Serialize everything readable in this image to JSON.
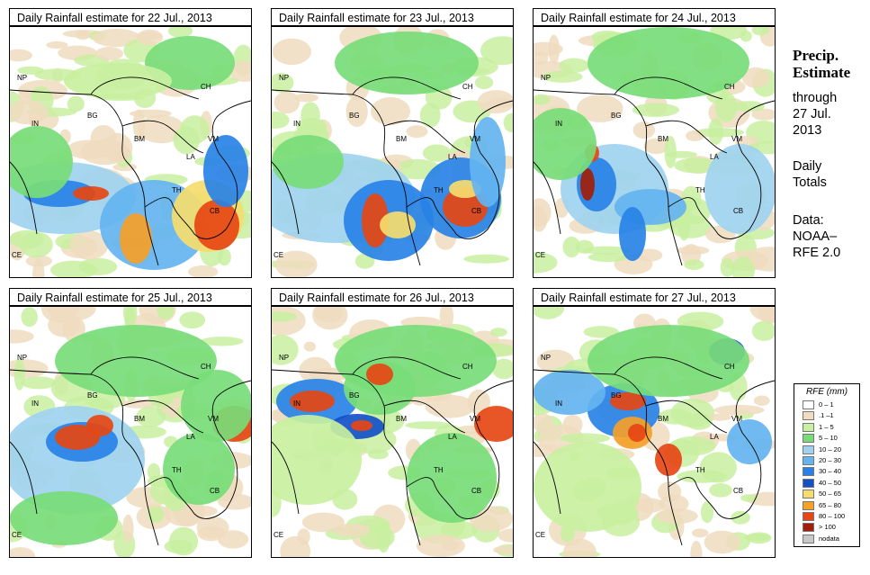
{
  "panels": [
    {
      "title": "Daily Rainfall estimate for  22 Jul., 2013",
      "day": 22
    },
    {
      "title": "Daily Rainfall estimate for  23 Jul., 2013",
      "day": 23
    },
    {
      "title": "Daily Rainfall estimate for  24 Jul., 2013",
      "day": 24
    },
    {
      "title": "Daily Rainfall estimate for  25 Jul., 2013",
      "day": 25
    },
    {
      "title": "Daily Rainfall estimate for  26 Jul., 2013",
      "day": 26
    },
    {
      "title": "Daily Rainfall estimate for  27 Jul., 2013",
      "day": 27
    }
  ],
  "country_labels": {
    "np": "NP",
    "in": "IN",
    "bg": "BG",
    "bm": "BM",
    "ch": "CH",
    "la": "LA",
    "vm": "VM",
    "th": "TH",
    "cb": "CB",
    "ce": "CE"
  },
  "sidebar": {
    "heading_line1": "Precip.",
    "heading_line2": "Estimate",
    "through_label": "through",
    "through_date_line1": "27 Jul.",
    "through_date_line2": "2013",
    "daily_line1": "Daily",
    "daily_line2": "Totals",
    "data_line1": "Data:",
    "data_line2": "NOAA–",
    "data_line3": "RFE 2.0"
  },
  "legend": {
    "title": "RFE (mm)",
    "items": [
      {
        "label": "0 – 1",
        "color": "#ffffff"
      },
      {
        "label": ".1 –1",
        "color": "#f0dcc0"
      },
      {
        "label": "1 – 5",
        "color": "#c8f0a0"
      },
      {
        "label": "5 – 10",
        "color": "#78dc78"
      },
      {
        "label": "10 – 20",
        "color": "#a0d2f0"
      },
      {
        "label": "20 – 30",
        "color": "#64b4f0"
      },
      {
        "label": "30 – 40",
        "color": "#2882e6"
      },
      {
        "label": "40 – 50",
        "color": "#1450c8"
      },
      {
        "label": "50 – 65",
        "color": "#f5dc6e"
      },
      {
        "label": "65 – 80",
        "color": "#f5a028"
      },
      {
        "label": "80 – 100",
        "color": "#e64614"
      },
      {
        "label": "> 100",
        "color": "#a01e0a"
      },
      {
        "label": "nodata",
        "color": "#c8c8c8"
      }
    ]
  }
}
